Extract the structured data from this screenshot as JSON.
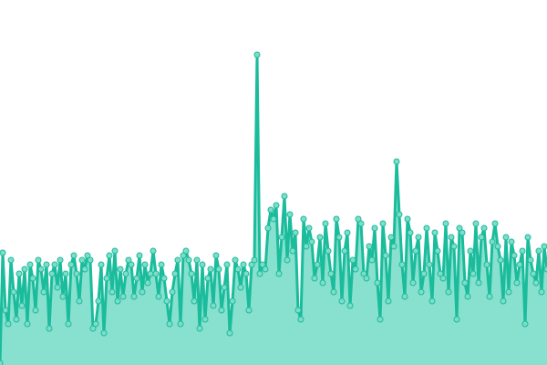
{
  "chart_data": {
    "type": "area",
    "title": "",
    "xlabel": "",
    "ylabel": "",
    "ylim": [
      0,
      400
    ],
    "grid": false,
    "legend": "none",
    "colors": {
      "line": "#1abc9c",
      "fill": "#88e0cf",
      "point_fill": "#7fdcc8"
    },
    "values": [
      2,
      123,
      60,
      45,
      115,
      80,
      50,
      100,
      65,
      105,
      45,
      110,
      95,
      60,
      115,
      105,
      80,
      110,
      40,
      100,
      110,
      85,
      115,
      75,
      100,
      45,
      110,
      120,
      100,
      70,
      115,
      105,
      120,
      115,
      40,
      45,
      70,
      110,
      35,
      95,
      120,
      80,
      125,
      70,
      105,
      75,
      100,
      115,
      110,
      75,
      95,
      120,
      80,
      110,
      90,
      100,
      125,
      100,
      75,
      110,
      95,
      70,
      45,
      80,
      100,
      115,
      45,
      120,
      125,
      115,
      100,
      70,
      115,
      40,
      110,
      50,
      95,
      105,
      65,
      120,
      105,
      60,
      85,
      110,
      35,
      70,
      115,
      105,
      85,
      110,
      100,
      60,
      110,
      115,
      340,
      100,
      110,
      105,
      150,
      170,
      160,
      175,
      100,
      140,
      185,
      115,
      165,
      125,
      145,
      60,
      50,
      160,
      130,
      150,
      135,
      95,
      110,
      140,
      90,
      155,
      125,
      100,
      80,
      160,
      140,
      70,
      125,
      145,
      65,
      115,
      105,
      160,
      155,
      100,
      95,
      130,
      115,
      150,
      90,
      50,
      155,
      120,
      70,
      140,
      130,
      223,
      165,
      110,
      75,
      160,
      145,
      90,
      125,
      140,
      80,
      100,
      150,
      110,
      70,
      145,
      125,
      100,
      95,
      155,
      80,
      140,
      130,
      50,
      150,
      145,
      90,
      75,
      125,
      100,
      155,
      90,
      140,
      150,
      110,
      75,
      135,
      155,
      130,
      115,
      70,
      140,
      80,
      135,
      120,
      90,
      110,
      125,
      45,
      140,
      115,
      100,
      90,
      125,
      80,
      130,
      105
    ]
  }
}
